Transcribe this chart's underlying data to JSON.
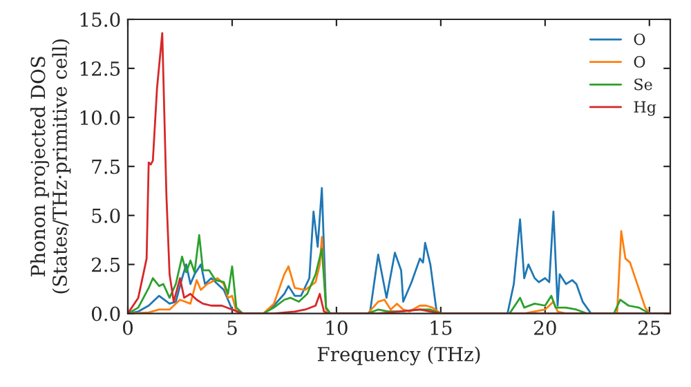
{
  "chart_data": {
    "type": "line",
    "xlabel": "Frequency (THz)",
    "ylabel": "Phonon projected DOS\n(States/THz·primitive cell)",
    "xlim": [
      0,
      26
    ],
    "ylim": [
      0,
      15
    ],
    "xticks": [
      0,
      5,
      10,
      15,
      20,
      25
    ],
    "yticks": [
      {
        "value": 0,
        "label": "0.0"
      },
      {
        "value": 2.5,
        "label": "2.5"
      },
      {
        "value": 5,
        "label": "5.0"
      },
      {
        "value": 7.5,
        "label": "7.5"
      },
      {
        "value": 10,
        "label": "10.0"
      },
      {
        "value": 12.5,
        "label": "12.5"
      },
      {
        "value": 15,
        "label": "15.0"
      }
    ],
    "legend": "top right",
    "grid": false,
    "series": [
      {
        "name": "O",
        "color": "#1f77b4",
        "x": [
          0,
          0.5,
          1,
          1.5,
          2,
          2.3,
          2.6,
          2.8,
          3,
          3.2,
          3.5,
          3.7,
          4,
          4.3,
          4.6,
          5,
          5.3,
          5.5,
          6.5,
          7,
          7.5,
          7.7,
          8,
          8.3,
          8.7,
          8.9,
          9.1,
          9.3,
          9.5,
          9.7,
          11.6,
          11.8,
          12.0,
          12.4,
          12.8,
          13.1,
          13.2,
          13.6,
          14.0,
          14.15,
          14.25,
          14.5,
          14.8,
          15,
          18.2,
          18.5,
          18.8,
          19,
          19.2,
          19.5,
          19.7,
          20,
          20.2,
          20.4,
          20.6,
          20.7,
          21,
          21.3,
          21.5,
          21.8,
          22.2,
          26
        ],
        "values": [
          0,
          0.1,
          0.4,
          0.9,
          0.5,
          0.6,
          1.8,
          2.5,
          1.5,
          2.0,
          2.5,
          1.5,
          1.8,
          1.5,
          1.2,
          0.2,
          0.1,
          0,
          0,
          0.4,
          1.0,
          1.4,
          0.9,
          0.9,
          1.8,
          5.2,
          3.4,
          6.4,
          0.3,
          0,
          0,
          1.5,
          3.0,
          0.8,
          3.1,
          2.2,
          0.6,
          1.6,
          2.8,
          2.6,
          3.6,
          2.5,
          0.1,
          0,
          0,
          1.5,
          4.8,
          1.8,
          2.5,
          1.8,
          1.6,
          1.8,
          1.6,
          5.2,
          0.4,
          2.0,
          1.5,
          1.7,
          1.5,
          0.6,
          0,
          0
        ]
      },
      {
        "name": "O",
        "color": "#ff7f0e",
        "x": [
          0,
          1,
          1.5,
          2,
          2.5,
          3,
          3.3,
          3.5,
          3.8,
          4,
          4.3,
          4.6,
          4.8,
          5,
          5.2,
          5.5,
          6.5,
          7,
          7.5,
          7.7,
          8,
          8.5,
          9,
          9.2,
          9.3,
          9.5,
          9.7,
          11.5,
          12,
          12.3,
          12.6,
          12.9,
          13.2,
          13.5,
          14,
          14.3,
          14.6,
          15,
          19,
          20,
          20.4,
          20.6,
          21,
          23.45,
          23.65,
          23.85,
          24.07,
          24.45,
          24.8,
          25,
          26
        ],
        "values": [
          0,
          0.05,
          0.2,
          0.2,
          0.7,
          0.5,
          1.7,
          1.2,
          1.5,
          1.6,
          1.8,
          1.5,
          0.8,
          0.9,
          0.1,
          0,
          0,
          0.5,
          2.0,
          2.4,
          1.3,
          1.2,
          1.6,
          2.5,
          3.9,
          0.2,
          0,
          0,
          0.6,
          0.7,
          0.2,
          0.5,
          0.2,
          0.1,
          0.4,
          0.4,
          0.3,
          0,
          0,
          0.2,
          0.6,
          0.1,
          0,
          0,
          4.2,
          2.8,
          2.6,
          1.4,
          0.3,
          0,
          0
        ]
      },
      {
        "name": "Se",
        "color": "#2ca02c",
        "x": [
          0,
          0.5,
          1,
          1.2,
          1.5,
          1.7,
          2,
          2.3,
          2.6,
          2.8,
          3,
          3.2,
          3.42,
          3.6,
          3.9,
          4.2,
          4.6,
          4.8,
          5.0,
          5.2,
          5.5,
          6.5,
          7,
          7.5,
          7.8,
          8.2,
          8.6,
          9,
          9.3,
          9.5,
          9.7,
          11.5,
          12,
          12.5,
          13,
          14,
          14.5,
          15,
          18.3,
          18.8,
          19,
          19.5,
          20,
          20.3,
          20.5,
          21,
          21.5,
          22,
          23.3,
          23.6,
          24,
          24.5,
          25,
          26
        ],
        "values": [
          0,
          0.3,
          1.3,
          1.8,
          1.4,
          1.5,
          0.8,
          1.5,
          2.9,
          2.1,
          2.7,
          2.1,
          4.0,
          2.2,
          2.2,
          1.7,
          1.6,
          1.0,
          2.4,
          0.3,
          0,
          0,
          0.3,
          0.7,
          0.8,
          0.6,
          1.0,
          2.0,
          3.3,
          0.3,
          0,
          0,
          0.2,
          0.1,
          0.1,
          0.2,
          0.2,
          0,
          0,
          0.8,
          0.3,
          0.5,
          0.4,
          0.9,
          0.3,
          0.3,
          0.2,
          0,
          0,
          0.7,
          0.4,
          0.3,
          0,
          0
        ]
      },
      {
        "name": "Hg",
        "color": "#d62728",
        "x": [
          0,
          0.5,
          0.9,
          1.0,
          1.1,
          1.2,
          1.4,
          1.65,
          1.85,
          2.0,
          2.2,
          2.5,
          2.7,
          3.0,
          3.3,
          3.6,
          4,
          4.5,
          5,
          5.5,
          7,
          8,
          8.5,
          9,
          9.2,
          9.4,
          9.6,
          12,
          13,
          14,
          14.5,
          15,
          26
        ],
        "values": [
          0,
          0.8,
          2.8,
          7.7,
          7.6,
          7.8,
          11.5,
          14.3,
          6,
          2,
          0.6,
          1.8,
          0.8,
          1.0,
          0.7,
          0.5,
          0.4,
          0.4,
          0.2,
          0,
          0,
          0.1,
          0.2,
          0.4,
          1.0,
          0.1,
          0,
          0,
          0.1,
          0.2,
          0.1,
          0,
          0
        ]
      }
    ]
  }
}
